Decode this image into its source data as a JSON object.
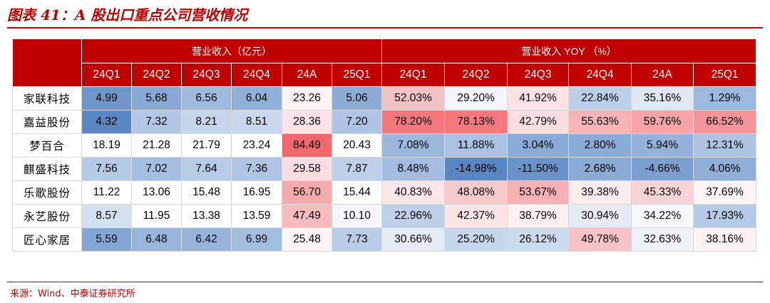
{
  "title": "图表 41：A 股出口重点公司营收情况",
  "table": {
    "group_headers": [
      "营业收入（亿元）",
      "营业收入 YOY （%）"
    ],
    "periods": [
      "24Q1",
      "24Q2",
      "24Q3",
      "24Q4",
      "24A",
      "25Q1",
      "24Q1",
      "24Q2",
      "24Q3",
      "24Q4",
      "24A",
      "25Q1"
    ],
    "rows": [
      {
        "company": "家联科技",
        "values": [
          "4.99",
          "5.68",
          "6.56",
          "6.04",
          "23.26",
          "5.06",
          "52.03%",
          "29.20%",
          "41.92%",
          "22.84%",
          "35.16%",
          "1.29%"
        ],
        "colors": [
          "#6f96cb",
          "#88a9d4",
          "#9fbade",
          "#91b0d8",
          "#fff2f2",
          "#8cacd6",
          "#f2c3c5",
          "#f2f6fb",
          "#fbe2e3",
          "#bccfe8",
          "#dfe7f3",
          "#9db8dd"
        ]
      },
      {
        "company": "嘉益股份",
        "values": [
          "4.32",
          "7.32",
          "8.21",
          "8.51",
          "28.36",
          "7.20",
          "78.20%",
          "78.13%",
          "42.79%",
          "55.63%",
          "59.76%",
          "66.52%"
        ],
        "colors": [
          "#5a86c3",
          "#b1c7e4",
          "#c5d5eb",
          "#c9d8ec",
          "#fde3e4",
          "#aec4e2",
          "#f4777d",
          "#f4787e",
          "#fbdfe0",
          "#f6b4b7",
          "#f6a4a8",
          "#f59599"
        ]
      },
      {
        "company": "梦百合",
        "values": [
          "18.19",
          "21.28",
          "21.79",
          "23.24",
          "84.49",
          "20.43",
          "7.08%",
          "11.88%",
          "3.04%",
          "2.80%",
          "5.94%",
          "12.31%"
        ],
        "colors": [
          "#ffffff",
          "#ffffff",
          "#ffffff",
          "#ffffff",
          "#f2676d",
          "#ffffff",
          "#9ab7dc",
          "#abc2e2",
          "#8aabd5",
          "#8aabd5",
          "#95b3da",
          "#adc4e2"
        ]
      },
      {
        "company": "麒盛科技",
        "values": [
          "7.56",
          "7.02",
          "7.64",
          "7.36",
          "29.58",
          "7.87",
          "8.48%",
          "-14.98%",
          "-11.50%",
          "2.68%",
          "-4.66%",
          "4.06%"
        ],
        "colors": [
          "#b4cae5",
          "#a5bfe1",
          "#b6cbe6",
          "#afc5e3",
          "#fcdddf",
          "#bdd0e8",
          "#a3bce0",
          "#5a86c3",
          "#6a93ca",
          "#8aabd5",
          "#7aa0cf",
          "#8fafd8"
        ]
      },
      {
        "company": "乐歌股份",
        "values": [
          "11.22",
          "13.06",
          "15.48",
          "16.95",
          "56.70",
          "15.44",
          "40.83%",
          "48.08%",
          "53.67%",
          "39.38%",
          "45.33%",
          "37.69%"
        ],
        "colors": [
          "#ffffff",
          "#ffffff",
          "#ffffff",
          "#ffffff",
          "#f6aaad",
          "#ffffff",
          "#fce7e8",
          "#f8c9cb",
          "#f6b1b4",
          "#fdeced",
          "#f9d4d6",
          "#fef5f5"
        ]
      },
      {
        "company": "永艺股份",
        "values": [
          "8.57",
          "11.95",
          "13.38",
          "13.59",
          "47.49",
          "10.10",
          "22.96%",
          "42.37%",
          "38.79%",
          "30.94%",
          "34.22%",
          "17.93%"
        ],
        "colors": [
          "#d2e0f0",
          "#ffffff",
          "#ffffff",
          "#ffffff",
          "#f8bcbf",
          "#f4f7fc",
          "#bed0e8",
          "#fde5e6",
          "#feeff0",
          "#e4ebf5",
          "#f6f9fc",
          "#b5cae5"
        ]
      },
      {
        "company": "匠心家居",
        "values": [
          "5.59",
          "6.48",
          "6.42",
          "6.99",
          "25.48",
          "7.73",
          "30.66%",
          "25.20%",
          "26.12%",
          "49.78%",
          "32.63%",
          "38.16%"
        ],
        "colors": [
          "#84a6d3",
          "#99b5db",
          "#98b4db",
          "#a4bee0",
          "#fff5f5",
          "#b9cde7",
          "#e4ebf5",
          "#c6d6eb",
          "#ccdaed",
          "#f8c3c6",
          "#edf2f9",
          "#fef2f3"
        ]
      }
    ]
  },
  "source": "来源：Wind、中泰证券研究所",
  "colors": {
    "accent": "#c00000"
  }
}
